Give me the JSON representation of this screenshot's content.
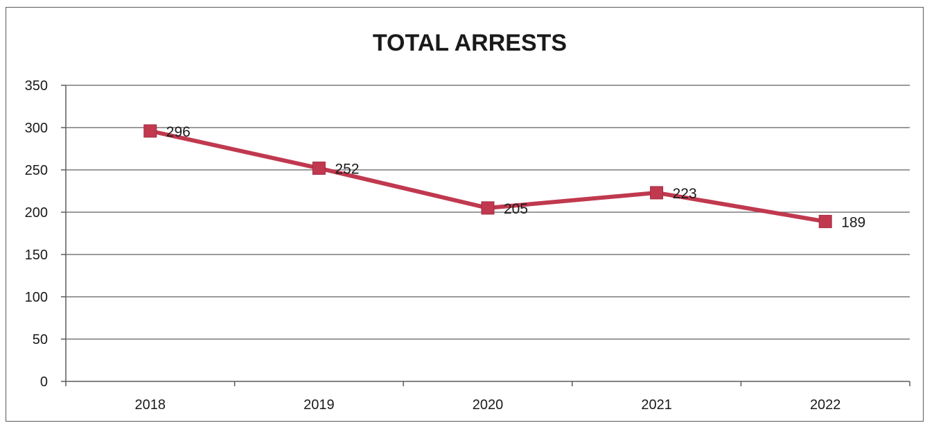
{
  "chart_data": {
    "type": "line",
    "title": "TOTAL ARRESTS",
    "xlabel": "",
    "ylabel": "",
    "categories": [
      "2018",
      "2019",
      "2020",
      "2021",
      "2022"
    ],
    "series": [
      {
        "values": [
          296,
          252,
          205,
          223,
          189
        ],
        "color": "#c0394f",
        "marker": "square"
      }
    ],
    "data_labels": [
      "296",
      "252",
      "205",
      "223",
      "189"
    ],
    "ylim": [
      0,
      350
    ],
    "yticks": [
      "0",
      "50",
      "100",
      "150",
      "200",
      "250",
      "300",
      "350"
    ],
    "grid": true,
    "legend": "none",
    "colors": {
      "line": "#c0394f",
      "grid": "#7a7a7a",
      "axis": "#5a5a5a"
    }
  }
}
